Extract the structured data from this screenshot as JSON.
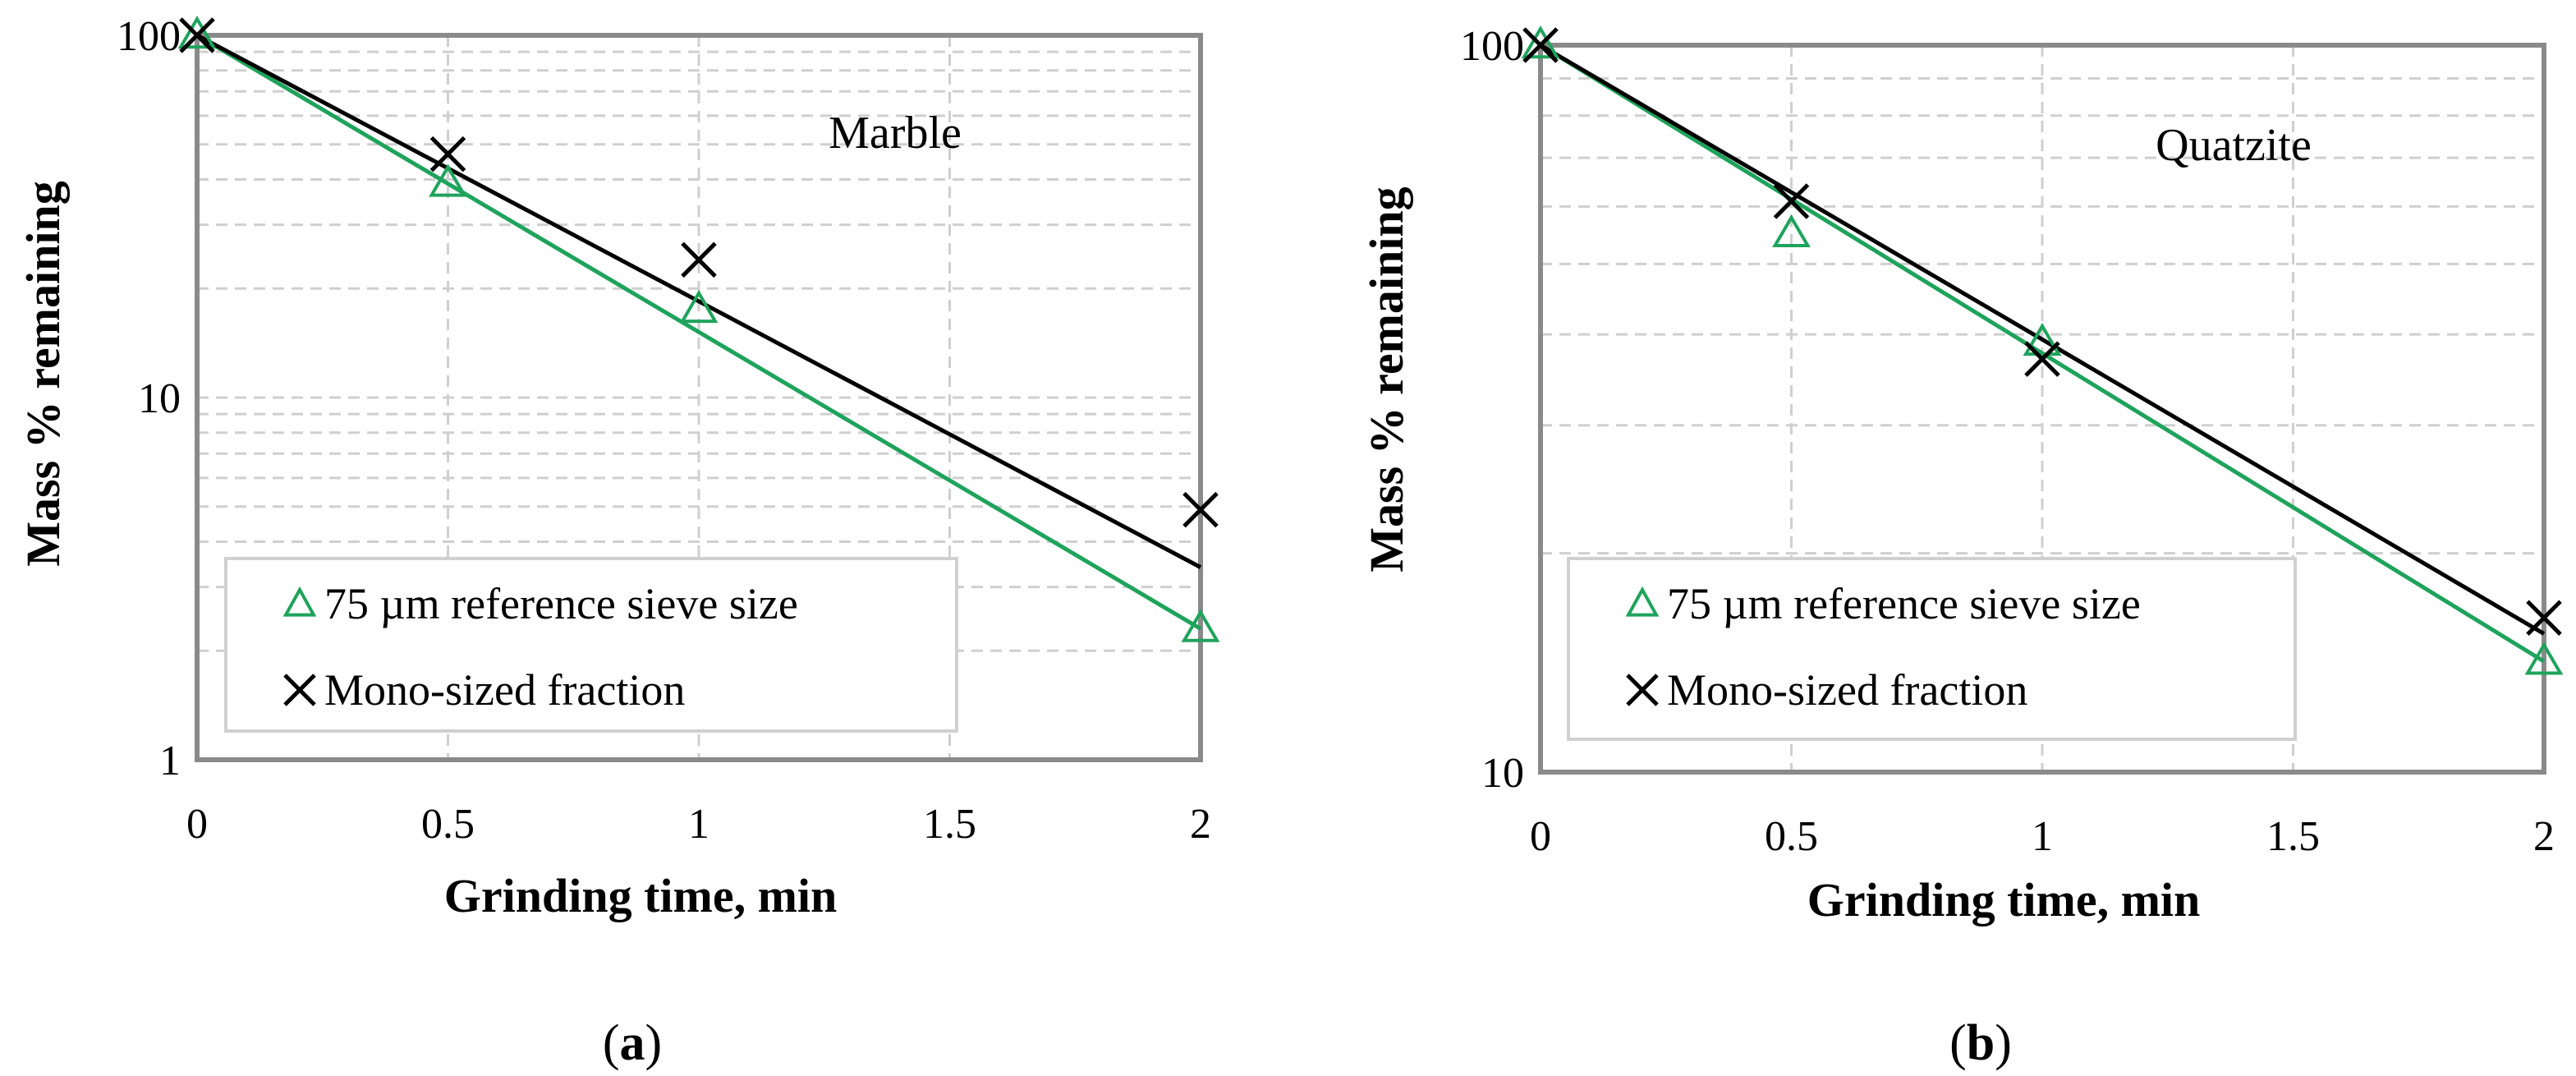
{
  "chart_data": [
    {
      "type": "scatter",
      "panel_label": "(a)",
      "annotation": "Marble",
      "xlabel": "Grinding time, min",
      "ylabel": "Mass % remaining",
      "xlim": [
        0,
        2
      ],
      "ylim": [
        1,
        100
      ],
      "yscale": "log",
      "x_ticks": [
        "0",
        "0.5",
        "1",
        "1.5",
        "2"
      ],
      "x_tick_values": [
        0,
        0.5,
        1,
        1.5,
        2
      ],
      "y_ticks": [
        "1",
        "10",
        "100"
      ],
      "y_tick_values": [
        1,
        10,
        100
      ],
      "legend_position": "bottom-left",
      "series": [
        {
          "name": "75 µm reference sieve size",
          "marker": "triangle",
          "color": "#1fa35c",
          "x": [
            0,
            0.5,
            1,
            2
          ],
          "values": [
            100,
            39,
            17.5,
            2.3
          ],
          "fit_line": [
            [
              0,
              100
            ],
            [
              2,
              2.3
            ]
          ]
        },
        {
          "name": "Mono-sized fraction",
          "marker": "x",
          "color": "#000000",
          "x": [
            0,
            0.5,
            1,
            2
          ],
          "values": [
            100,
            47,
            24,
            4.9
          ],
          "fit_line": [
            [
              0,
              100
            ],
            [
              2,
              3.4
            ]
          ]
        }
      ]
    },
    {
      "type": "scatter",
      "panel_label": "(b)",
      "annotation": "Quatzite",
      "xlabel": "Grinding time, min",
      "ylabel": "Mass % remaining",
      "xlim": [
        0,
        2
      ],
      "ylim": [
        10,
        100
      ],
      "yscale": "log",
      "x_ticks": [
        "0",
        "0.5",
        "1",
        "1.5",
        "2"
      ],
      "x_tick_values": [
        0,
        0.5,
        1,
        1.5,
        2
      ],
      "y_ticks": [
        "10",
        "100"
      ],
      "y_tick_values": [
        10,
        100
      ],
      "legend_position": "bottom-left",
      "series": [
        {
          "name": "75 µm reference sieve size",
          "marker": "triangle",
          "color": "#1fa35c",
          "x": [
            0,
            0.5,
            1,
            2
          ],
          "values": [
            100,
            55,
            39,
            14.2
          ],
          "fit_line": [
            [
              0,
              100
            ],
            [
              2,
              14.2
            ]
          ]
        },
        {
          "name": "Mono-sized fraction",
          "marker": "x",
          "color": "#000000",
          "x": [
            0,
            0.5,
            1,
            2
          ],
          "values": [
            100,
            61,
            37,
            16.3
          ],
          "fit_line": [
            [
              0,
              100
            ],
            [
              2,
              15.5
            ]
          ]
        }
      ]
    }
  ]
}
